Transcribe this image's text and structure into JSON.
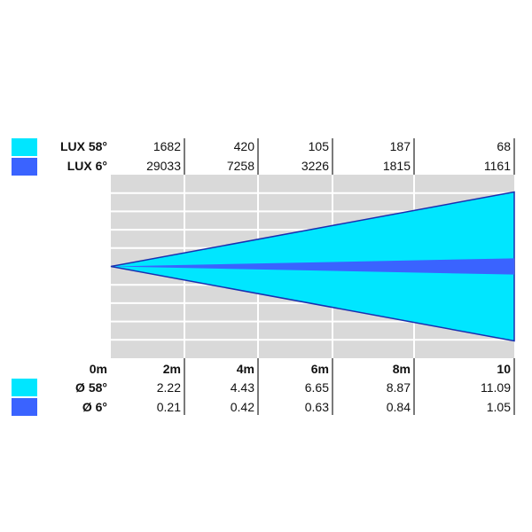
{
  "chart_data": {
    "type": "area",
    "title": "",
    "colors": {
      "wide_beam": "#00e6ff",
      "narrow_beam": "#3a63ff",
      "beam_outline": "#1a2fb0",
      "plot_background": "#d9d9d9",
      "grid": "#ffffff",
      "separator": "#222222"
    },
    "grid": true,
    "distance_labels": [
      "0m",
      "2m",
      "4m",
      "6m",
      "8m",
      "10"
    ],
    "distances_m": [
      0,
      2,
      4,
      6,
      8,
      10
    ],
    "lux_rows": [
      {
        "label": "LUX 58°",
        "color": "#00e6ff",
        "values": [
          "1682",
          "420",
          "105",
          "187",
          "68"
        ]
      },
      {
        "label": "LUX 6°",
        "color": "#3a63ff",
        "values": [
          "29033",
          "7258",
          "3226",
          "1815",
          "1161"
        ]
      }
    ],
    "diameter_rows": [
      {
        "label": "Ø 58°",
        "color": "#00e6ff",
        "values": [
          "2.22",
          "4.43",
          "6.65",
          "8.87",
          "11.09"
        ]
      },
      {
        "label": "Ø 6°",
        "color": "#3a63ff",
        "values": [
          "0.21",
          "0.42",
          "0.63",
          "0.84",
          "1.05"
        ]
      }
    ],
    "series": [
      {
        "name": "58°",
        "beam_angle_deg": 58,
        "diameter_at_10m": 11.09
      },
      {
        "name": "6°",
        "beam_angle_deg": 6,
        "diameter_at_10m": 1.05
      }
    ]
  }
}
